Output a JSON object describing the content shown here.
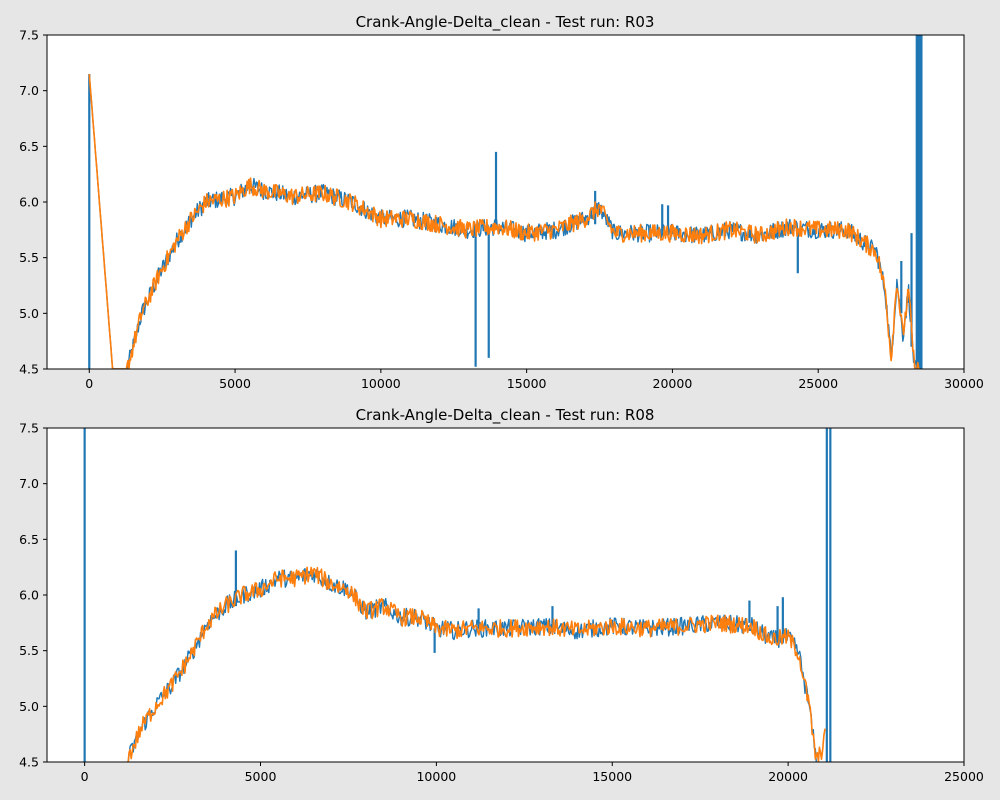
{
  "chart_data": [
    {
      "type": "line",
      "title": "Crank-Angle-Delta_clean - Test run: R03",
      "xlabel": "",
      "ylabel": "",
      "xlim": [
        -1450,
        30000
      ],
      "ylim": [
        4.5,
        7.5
      ],
      "xticks": [
        0,
        5000,
        10000,
        15000,
        20000,
        25000,
        30000
      ],
      "yticks": [
        4.5,
        5.0,
        5.5,
        6.0,
        6.5,
        7.0,
        7.5
      ],
      "tick_labels_x": [
        "0",
        "5000",
        "10000",
        "15000",
        "20000",
        "25000",
        "30000"
      ],
      "tick_labels_y": [
        "4.5",
        "5.0",
        "5.5",
        "6.0",
        "6.5",
        "7.0",
        "7.5"
      ],
      "grid": false,
      "series": [
        {
          "color": "#1f77b4",
          "x": [
            0,
            800,
            1300,
            1800,
            2400,
            3000,
            3500,
            4000,
            5000,
            5500,
            6000,
            7000,
            8000,
            9000,
            10000,
            11000,
            12000,
            13000,
            14000,
            15000,
            16000,
            17000,
            17500,
            18000,
            19000,
            20000,
            21000,
            22000,
            23000,
            24000,
            25000,
            26000,
            26500,
            27000,
            27300,
            27500,
            27700,
            27900,
            28100,
            28300,
            28500
          ],
          "y": [
            7.15,
            4.5,
            4.5,
            5.0,
            5.35,
            5.65,
            5.85,
            6.0,
            6.05,
            6.15,
            6.1,
            6.05,
            6.08,
            6.0,
            5.85,
            5.85,
            5.8,
            5.75,
            5.78,
            5.72,
            5.75,
            5.85,
            5.95,
            5.72,
            5.72,
            5.72,
            5.7,
            5.75,
            5.7,
            5.78,
            5.75,
            5.75,
            5.65,
            5.55,
            5.2,
            4.6,
            5.3,
            4.8,
            5.2,
            4.5,
            4.5
          ],
          "spikes": [
            {
              "x": 0,
              "y0": 4.5,
              "y1": 7.15
            },
            {
              "x": 13250,
              "y0": 4.52,
              "y1": 5.75
            },
            {
              "x": 13700,
              "y0": 4.6,
              "y1": 5.75
            },
            {
              "x": 13950,
              "y0": 5.75,
              "y1": 6.45
            },
            {
              "x": 17350,
              "y0": 5.8,
              "y1": 6.1
            },
            {
              "x": 19650,
              "y0": 5.7,
              "y1": 5.98
            },
            {
              "x": 19850,
              "y0": 5.7,
              "y1": 5.97
            },
            {
              "x": 24300,
              "y0": 5.36,
              "y1": 5.75
            },
            {
              "x": 27850,
              "y0": 5.0,
              "y1": 5.47
            },
            {
              "x": 28200,
              "y0": 4.7,
              "y1": 5.72
            },
            {
              "x": 28380,
              "y0": 4.5,
              "y1": 7.5
            },
            {
              "x": 28430,
              "y0": 4.5,
              "y1": 7.5
            },
            {
              "x": 28480,
              "y0": 4.5,
              "y1": 7.5
            },
            {
              "x": 28540,
              "y0": 4.5,
              "y1": 7.5
            }
          ]
        },
        {
          "color": "#ff7f0e",
          "x": [
            0,
            800,
            1300,
            1800,
            2400,
            3000,
            3500,
            4000,
            5000,
            5500,
            6000,
            7000,
            8000,
            9000,
            10000,
            11000,
            12000,
            13000,
            14000,
            15000,
            16000,
            17000,
            17500,
            18000,
            19000,
            20000,
            21000,
            22000,
            23000,
            24000,
            25000,
            26000,
            26500,
            27000,
            27300,
            27500,
            27700,
            27900,
            28100,
            28300,
            28500
          ],
          "y": [
            7.15,
            4.5,
            4.5,
            5.0,
            5.35,
            5.65,
            5.85,
            6.0,
            6.05,
            6.15,
            6.1,
            6.05,
            6.08,
            6.0,
            5.85,
            5.85,
            5.8,
            5.75,
            5.78,
            5.72,
            5.75,
            5.85,
            5.95,
            5.72,
            5.72,
            5.72,
            5.7,
            5.75,
            5.7,
            5.78,
            5.75,
            5.75,
            5.65,
            5.55,
            5.2,
            4.6,
            5.3,
            4.8,
            5.2,
            4.5,
            4.5
          ]
        }
      ]
    },
    {
      "type": "line",
      "title": "Crank-Angle-Delta_clean - Test run: R08",
      "xlabel": "",
      "ylabel": "",
      "xlim": [
        -1070,
        25000
      ],
      "ylim": [
        4.5,
        7.5
      ],
      "xticks": [
        0,
        5000,
        10000,
        15000,
        20000,
        25000
      ],
      "yticks": [
        4.5,
        5.0,
        5.5,
        6.0,
        6.5,
        7.0,
        7.5
      ],
      "tick_labels_x": [
        "0",
        "5000",
        "10000",
        "15000",
        "20000",
        "25000"
      ],
      "tick_labels_y": [
        "4.5",
        "5.0",
        "5.5",
        "6.0",
        "6.5",
        "7.0",
        "7.5"
      ],
      "grid": false,
      "series": [
        {
          "color": "#1f77b4",
          "x": [
            1200,
            1600,
            2000,
            2500,
            3000,
            3500,
            4000,
            4500,
            5000,
            5500,
            6000,
            6500,
            7000,
            7500,
            8000,
            8500,
            9000,
            9500,
            10000,
            10500,
            11000,
            12000,
            13000,
            14000,
            15000,
            16000,
            17000,
            18000,
            19000,
            19500,
            20000,
            20300,
            20600,
            20800
          ],
          "y": [
            4.5,
            4.8,
            5.0,
            5.2,
            5.45,
            5.75,
            5.9,
            6.0,
            6.05,
            6.15,
            6.15,
            6.2,
            6.1,
            6.05,
            5.85,
            5.9,
            5.8,
            5.8,
            5.7,
            5.68,
            5.7,
            5.7,
            5.72,
            5.68,
            5.72,
            5.7,
            5.72,
            5.75,
            5.72,
            5.6,
            5.62,
            5.48,
            5.0,
            4.5
          ],
          "spikes": [
            {
              "x": 0,
              "y0": 4.5,
              "y1": 7.5
            },
            {
              "x": 4300,
              "y0": 5.9,
              "y1": 6.4
            },
            {
              "x": 9950,
              "y0": 5.48,
              "y1": 5.7
            },
            {
              "x": 11200,
              "y0": 5.7,
              "y1": 5.88
            },
            {
              "x": 13300,
              "y0": 5.7,
              "y1": 5.9
            },
            {
              "x": 18900,
              "y0": 5.75,
              "y1": 5.95
            },
            {
              "x": 19700,
              "y0": 5.62,
              "y1": 5.9
            },
            {
              "x": 19850,
              "y0": 5.62,
              "y1": 5.98
            },
            {
              "x": 21100,
              "y0": 4.5,
              "y1": 7.5
            },
            {
              "x": 21200,
              "y0": 4.5,
              "y1": 7.5
            }
          ]
        },
        {
          "color": "#ff7f0e",
          "x": [
            1200,
            1600,
            2000,
            2500,
            3000,
            3500,
            4000,
            4500,
            5000,
            5500,
            6000,
            6500,
            7000,
            7500,
            8000,
            8500,
            9000,
            9500,
            10000,
            10500,
            11000,
            12000,
            13000,
            14000,
            15000,
            16000,
            17000,
            18000,
            19000,
            19500,
            20000,
            20300,
            20600,
            20800,
            20950,
            21050
          ],
          "y": [
            4.5,
            4.8,
            5.0,
            5.2,
            5.45,
            5.75,
            5.9,
            6.0,
            6.05,
            6.15,
            6.15,
            6.2,
            6.1,
            6.05,
            5.85,
            5.9,
            5.8,
            5.8,
            5.7,
            5.68,
            5.7,
            5.7,
            5.72,
            5.68,
            5.72,
            5.7,
            5.72,
            5.75,
            5.72,
            5.6,
            5.62,
            5.48,
            5.0,
            4.5,
            4.6,
            4.8
          ]
        }
      ]
    }
  ]
}
